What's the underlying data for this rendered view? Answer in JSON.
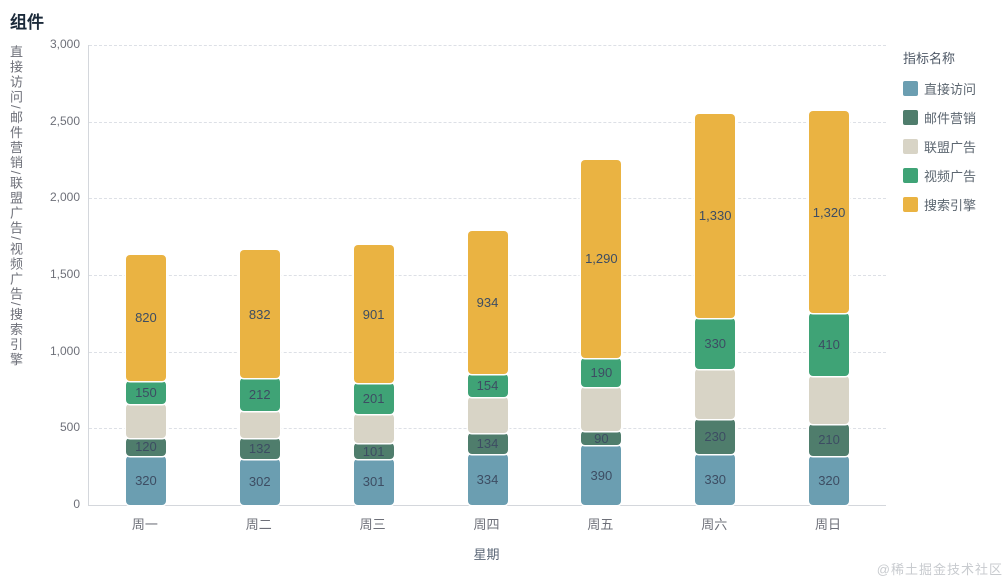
{
  "page": {
    "title": "组件",
    "watermark": "@稀土掘金技术社区"
  },
  "legend": {
    "title": "指标名称"
  },
  "chart_data": {
    "type": "bar",
    "stacked": true,
    "categories": [
      "周一",
      "周二",
      "周三",
      "周四",
      "周五",
      "周六",
      "周日"
    ],
    "xlabel": "星期",
    "ylabel": "直接访问/邮件营销/联盟广告/视频广告/搜索引擎",
    "ylim": [
      0,
      3000
    ],
    "ytick_interval": 500,
    "grid": "horizontal-dashed",
    "legend_position": "right",
    "series": [
      {
        "name": "直接访问",
        "key": "direct-visit",
        "color": "#6B9EB1",
        "values": [
          320,
          302,
          301,
          334,
          390,
          330,
          320
        ],
        "labels_visible": true
      },
      {
        "name": "邮件营销",
        "key": "email-marketing",
        "color": "#4F7D6C",
        "values": [
          120,
          132,
          101,
          134,
          90,
          230,
          210
        ],
        "labels_visible": true
      },
      {
        "name": "联盟广告",
        "key": "affiliate-ads",
        "color": "#D8D4C6",
        "values": [
          220,
          182,
          191,
          234,
          290,
          330,
          310
        ],
        "labels_visible": false
      },
      {
        "name": "视频广告",
        "key": "video-ads",
        "color": "#3FA376",
        "values": [
          150,
          212,
          201,
          154,
          190,
          330,
          410
        ],
        "labels_visible": true
      },
      {
        "name": "搜索引擎",
        "key": "search-engine",
        "color": "#EAB342",
        "values": [
          820,
          832,
          901,
          934,
          1290,
          1330,
          1320
        ],
        "labels_visible": true
      }
    ]
  }
}
